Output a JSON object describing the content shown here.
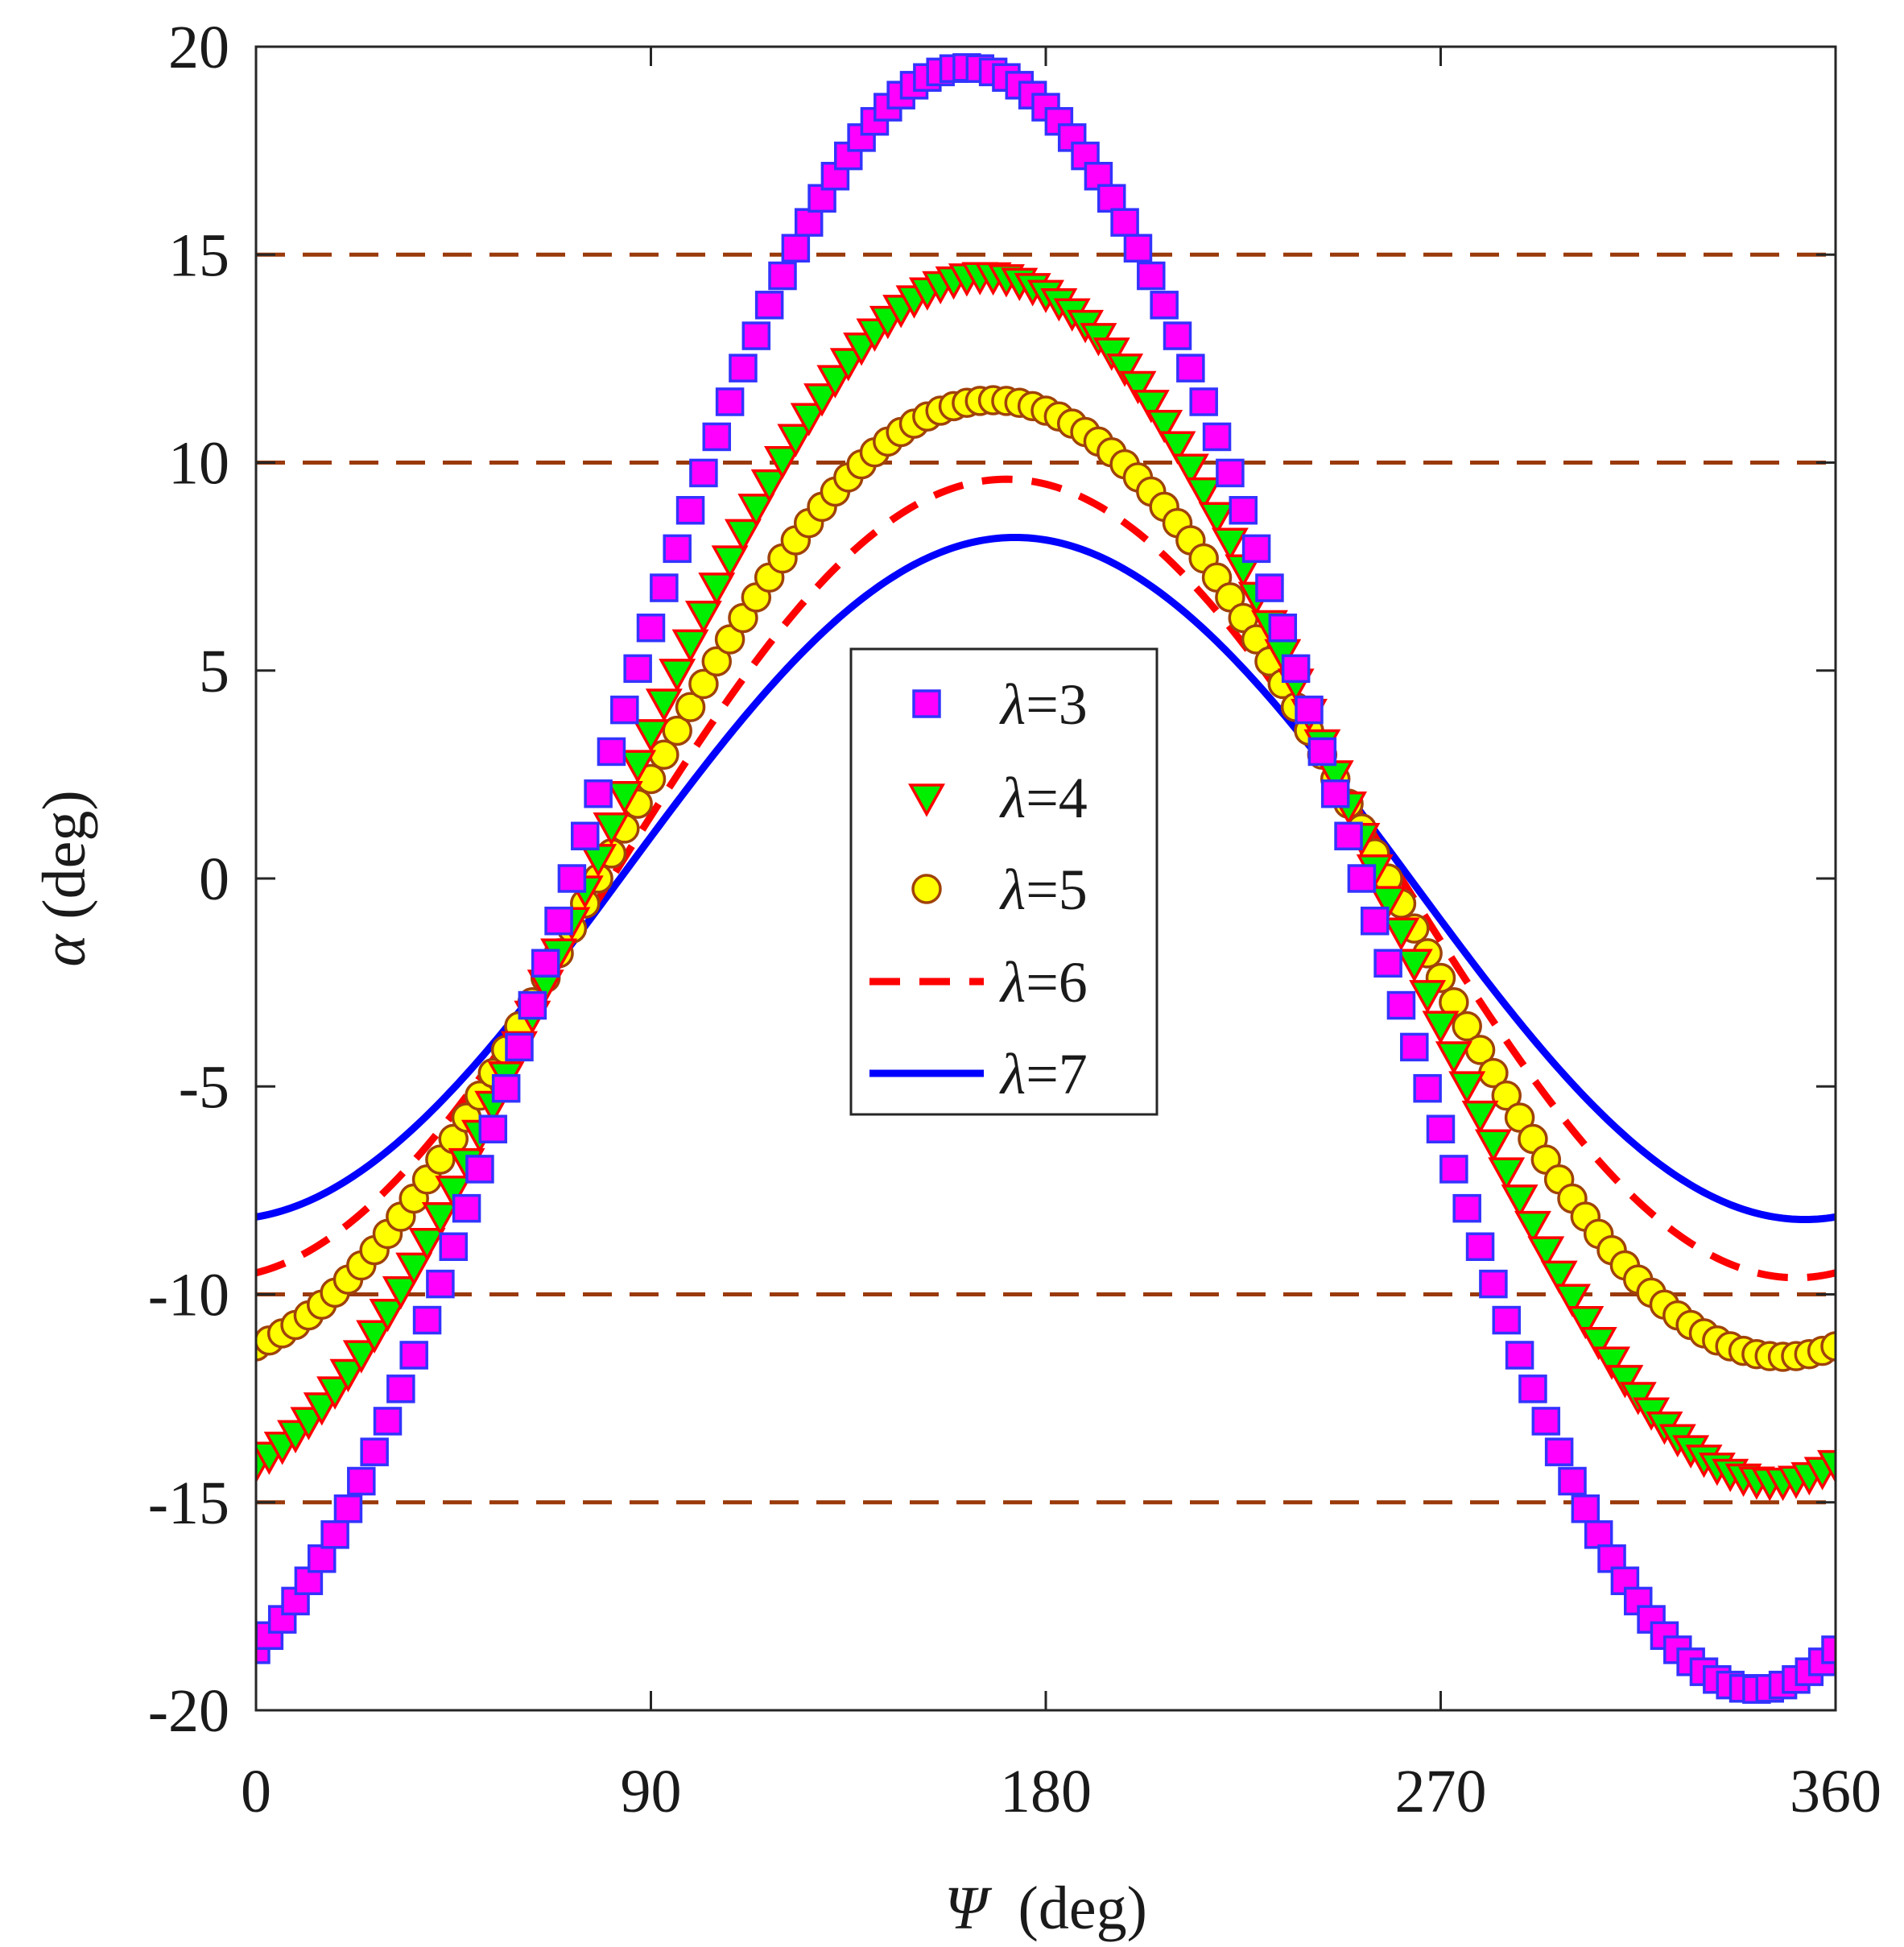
{
  "chart_data": {
    "type": "scatter",
    "xlabel": "Ψ  (deg)",
    "ylabel": "α (deg)",
    "xlabel_parts": {
      "symbol": "Ψ",
      "unit": "  (deg)"
    },
    "ylabel_parts": {
      "symbol": "α",
      "unit": " (deg)"
    },
    "xlim": [
      0,
      360
    ],
    "ylim": [
      -20,
      20
    ],
    "x_ticks": [
      0,
      90,
      180,
      270,
      360
    ],
    "y_ticks": [
      -20,
      -15,
      -10,
      -5,
      0,
      5,
      10,
      15,
      20
    ],
    "x_tick_labels": [
      "0",
      "90",
      "180",
      "270",
      "360"
    ],
    "y_tick_labels": [
      "-20",
      "-15",
      "-10",
      "-5",
      "0",
      "5",
      "10",
      "15",
      "20"
    ],
    "grid": false,
    "reference_lines": {
      "values": [
        15,
        10,
        -10,
        -15
      ],
      "style": "dashed",
      "color": "#9a3a0a"
    },
    "legend_position": "center",
    "x_step": 3,
    "series": [
      {
        "name": "λ=3",
        "label_symbol": "λ",
        "label_value": "=3",
        "marker": "square",
        "fill": "#ff00ff",
        "stroke": "#3333ff",
        "amplitude": 19.5,
        "phase_deg": 18,
        "y_at_0": -18.5,
        "y_at_360": -18.5
      },
      {
        "name": "λ=4",
        "label_symbol": "λ",
        "label_value": "=4",
        "marker": "triangle-down",
        "fill": "#00ee00",
        "stroke": "#ff0000",
        "amplitude": 14.5,
        "phase_deg": 14,
        "y_at_0": -14.1,
        "y_at_360": -14.1
      },
      {
        "name": "λ=5",
        "label_symbol": "λ",
        "label_value": "=5",
        "marker": "circle",
        "fill": "#ffff00",
        "stroke": "#a0420a",
        "amplitude": 11.5,
        "phase_deg": 12,
        "y_at_0": -11.3,
        "y_at_360": -11.3
      },
      {
        "name": "λ=6",
        "label_symbol": "λ",
        "label_value": "=6",
        "marker": "dashed-line",
        "color": "#ff0000",
        "amplitude": 9.6,
        "phase_deg": 9,
        "y_at_0": -9.5,
        "y_at_360": -9.5
      },
      {
        "name": "λ=7",
        "label_symbol": "λ",
        "label_value": "=7",
        "marker": "solid-line",
        "color": "#0000ff",
        "amplitude": 8.2,
        "phase_deg": 7,
        "y_at_0": -8.2,
        "y_at_360": -8.2
      }
    ]
  }
}
